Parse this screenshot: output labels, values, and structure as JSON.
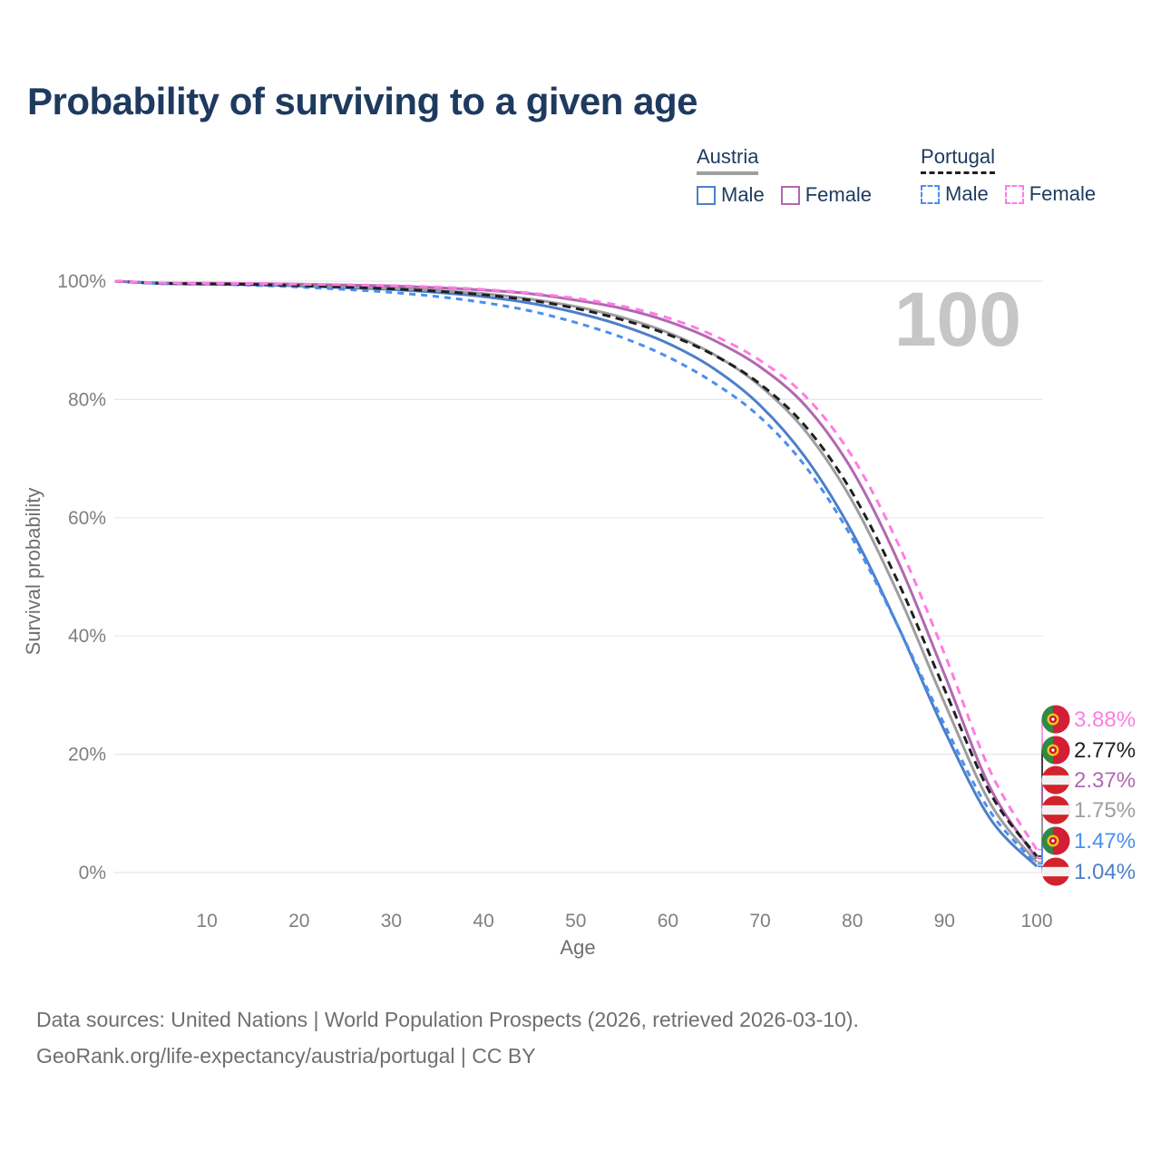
{
  "header": {
    "title": "Probability of surviving to a given age"
  },
  "legend": {
    "groups": [
      {
        "name": "Austria",
        "underline_style": "solid",
        "underline_color": "#9e9e9e",
        "items": [
          {
            "label": "Male",
            "color": "#4d7fc9",
            "dashed": false
          },
          {
            "label": "Female",
            "color": "#b168b1",
            "dashed": false
          }
        ]
      },
      {
        "name": "Portugal",
        "underline_style": "dashed",
        "underline_color": "#1f1f1f",
        "items": [
          {
            "label": "Male",
            "color": "#4a8ff0",
            "dashed": true
          },
          {
            "label": "Female",
            "color": "#ff7ce5",
            "dashed": true
          }
        ]
      }
    ]
  },
  "watermark": "100",
  "chart_data": {
    "type": "line",
    "title": "Probability of surviving to a given age",
    "xlabel": "Age",
    "ylabel": "Survival probability",
    "xlim": [
      0,
      100
    ],
    "ylim": [
      0,
      100
    ],
    "grid": "horizontal",
    "legend_position": "top-right",
    "x_tick_values": [
      10,
      20,
      30,
      40,
      50,
      60,
      70,
      80,
      90,
      100
    ],
    "x_tick_labels": [
      "10",
      "20",
      "30",
      "40",
      "50",
      "60",
      "70",
      "80",
      "90",
      "100"
    ],
    "y_tick_values": [
      0,
      20,
      40,
      60,
      80,
      100
    ],
    "y_tick_labels": [
      "0%",
      "20%",
      "40%",
      "60%",
      "80%",
      "100%"
    ],
    "x": [
      0,
      5,
      10,
      15,
      20,
      25,
      30,
      35,
      40,
      45,
      50,
      55,
      60,
      65,
      70,
      75,
      80,
      85,
      90,
      95,
      100
    ],
    "series": [
      {
        "name": "Austria Male",
        "country": "Austria",
        "sex": "Male",
        "flag": "austria",
        "color": "#4d7fc9",
        "dash": "solid",
        "end_label": "1.04%",
        "values": [
          100,
          99.6,
          99.5,
          99.4,
          99.2,
          98.9,
          98.6,
          98.1,
          97.4,
          96.3,
          94.7,
          92.5,
          89.5,
          85.2,
          79.0,
          70.0,
          57.5,
          41.5,
          24.0,
          9.0,
          1.04
        ]
      },
      {
        "name": "Austria",
        "country": "Austria",
        "sex": "Both",
        "flag": "austria",
        "color": "#9e9e9e",
        "dash": "solid",
        "end_label": "1.75%",
        "values": [
          100,
          99.65,
          99.6,
          99.5,
          99.35,
          99.1,
          98.8,
          98.4,
          97.9,
          97.0,
          95.7,
          93.9,
          91.3,
          87.6,
          82.3,
          74.5,
          62.8,
          47.0,
          28.7,
          11.6,
          1.75
        ]
      },
      {
        "name": "Austria Female",
        "country": "Austria",
        "sex": "Female",
        "flag": "austria",
        "color": "#b168b1",
        "dash": "solid",
        "end_label": "2.37%",
        "values": [
          100,
          99.7,
          99.65,
          99.6,
          99.5,
          99.35,
          99.2,
          98.9,
          98.5,
          97.9,
          96.8,
          95.4,
          93.2,
          90.0,
          85.5,
          78.8,
          68.0,
          52.5,
          33.5,
          14.2,
          2.37
        ]
      },
      {
        "name": "Portugal Male",
        "country": "Portugal",
        "sex": "Male",
        "flag": "portugal",
        "color": "#4a8ff0",
        "dash": "dashed",
        "dash_pattern": "7 6",
        "end_label": "1.47%",
        "values": [
          100,
          99.6,
          99.5,
          99.3,
          99.0,
          98.6,
          98.1,
          97.4,
          96.4,
          95.0,
          93.0,
          90.5,
          87.2,
          82.8,
          77.0,
          68.5,
          56.5,
          41.5,
          25.0,
          10.2,
          1.47
        ]
      },
      {
        "name": "Portugal",
        "country": "Portugal",
        "sex": "Both",
        "flag": "portugal",
        "color": "#1f1f1f",
        "dash": "dashed",
        "dash_pattern": "9 6",
        "end_label": "2.77%",
        "values": [
          100,
          99.65,
          99.55,
          99.45,
          99.25,
          99.0,
          98.7,
          98.3,
          97.7,
          96.8,
          95.4,
          93.5,
          91.0,
          87.5,
          82.6,
          75.3,
          64.2,
          49.0,
          31.0,
          13.3,
          2.77
        ]
      },
      {
        "name": "Portugal Female",
        "country": "Portugal",
        "sex": "Female",
        "flag": "portugal",
        "color": "#ff7ce5",
        "dash": "dashed",
        "dash_pattern": "9 7",
        "end_label": "3.88%",
        "values": [
          100,
          99.7,
          99.65,
          99.6,
          99.5,
          99.4,
          99.25,
          99.0,
          98.6,
          98.0,
          97.1,
          95.8,
          93.8,
          90.8,
          86.6,
          80.4,
          70.3,
          55.5,
          37.0,
          17.0,
          3.88
        ]
      }
    ],
    "end_label_order": [
      "3.88%",
      "2.77%",
      "2.37%",
      "1.75%",
      "1.47%",
      "1.04%"
    ]
  },
  "flags": {
    "austria": {
      "red": "#d2232c",
      "white": "#f2f2f2"
    },
    "portugal": {
      "green": "#2f8a46",
      "red": "#d41e35",
      "emblem_yellow": "#f3c21b",
      "emblem_red": "#c8102e",
      "emblem_white": "#ffffff"
    }
  },
  "colors": {
    "title": "#1e3a5f",
    "tick": "#7f7f7f",
    "axis_title": "#6f6f6f",
    "grid": "#e8e8e8",
    "watermark": "#c6c6c6",
    "footer": "#6f6f6f"
  },
  "footer": {
    "line1": "Data sources: United Nations | World Population Prospects (2026, retrieved 2026-03-10).",
    "line2": "GeoRank.org/life-expectancy/austria/portugal | CC BY"
  }
}
